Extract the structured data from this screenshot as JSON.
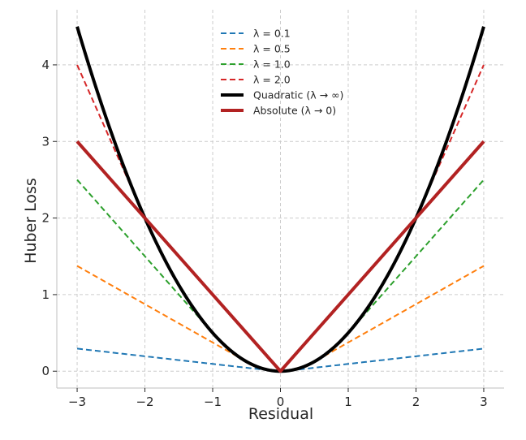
{
  "chart_data": {
    "type": "line",
    "title": "",
    "xlabel": "Residual",
    "ylabel": "Huber Loss",
    "xlim": [
      -3.3,
      3.3
    ],
    "ylim": [
      -0.22,
      4.72
    ],
    "xticks": [
      -3,
      -2,
      -1,
      0,
      1,
      2,
      3
    ],
    "xtick_labels": [
      "−3",
      "−2",
      "−1",
      "0",
      "1",
      "2",
      "3"
    ],
    "yticks": [
      0,
      1,
      2,
      3,
      4
    ],
    "ytick_labels": [
      "0",
      "1",
      "2",
      "3",
      "4"
    ],
    "grid": true,
    "legend_position": "top-center",
    "x_range": [
      -3,
      3
    ],
    "series": [
      {
        "name": "λ = 0.1",
        "kind": "huber",
        "delta": 0.1,
        "color": "#1f77b4",
        "style": "dashed",
        "width": 2
      },
      {
        "name": "λ = 0.5",
        "kind": "huber",
        "delta": 0.5,
        "color": "#ff7f0e",
        "style": "dashed",
        "width": 2
      },
      {
        "name": "λ = 1.0",
        "kind": "huber",
        "delta": 1.0,
        "color": "#2ca02c",
        "style": "dashed",
        "width": 2
      },
      {
        "name": "λ = 2.0",
        "kind": "huber",
        "delta": 2.0,
        "color": "#d62728",
        "style": "dashed",
        "width": 2
      },
      {
        "name": "Quadratic (λ → ∞)",
        "kind": "quadratic",
        "color": "#000000",
        "style": "solid",
        "width": 4
      },
      {
        "name": "Absolute (λ → 0)",
        "kind": "absolute",
        "color": "#b22222",
        "style": "solid",
        "width": 4
      }
    ]
  }
}
